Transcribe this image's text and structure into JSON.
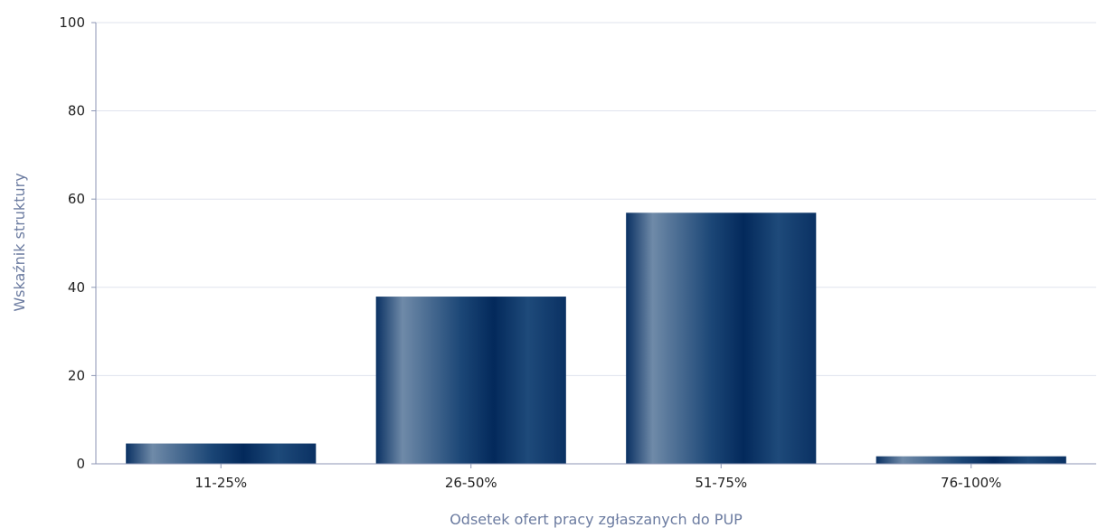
{
  "chart_data": {
    "type": "bar",
    "title": "",
    "xlabel": "Odsetek ofert pracy zgłaszanych do PUP",
    "ylabel": "Wskaźnik struktury",
    "categories": [
      "11-25%",
      "26-50%",
      "51-75%",
      "76-100%"
    ],
    "values": [
      4.6,
      37.9,
      56.9,
      1.7
    ],
    "ylim": [
      0,
      100
    ],
    "yticks": [
      "0",
      "20",
      "40",
      "60",
      "80",
      "100"
    ],
    "grid": true,
    "legend": "none",
    "colors": {
      "bar_dark": "#0a3163",
      "bar_light": "#6f8aa8",
      "grid": "#dfe3ee",
      "axis": "#8c96b4",
      "axis_title": "#6b7ba0"
    }
  }
}
